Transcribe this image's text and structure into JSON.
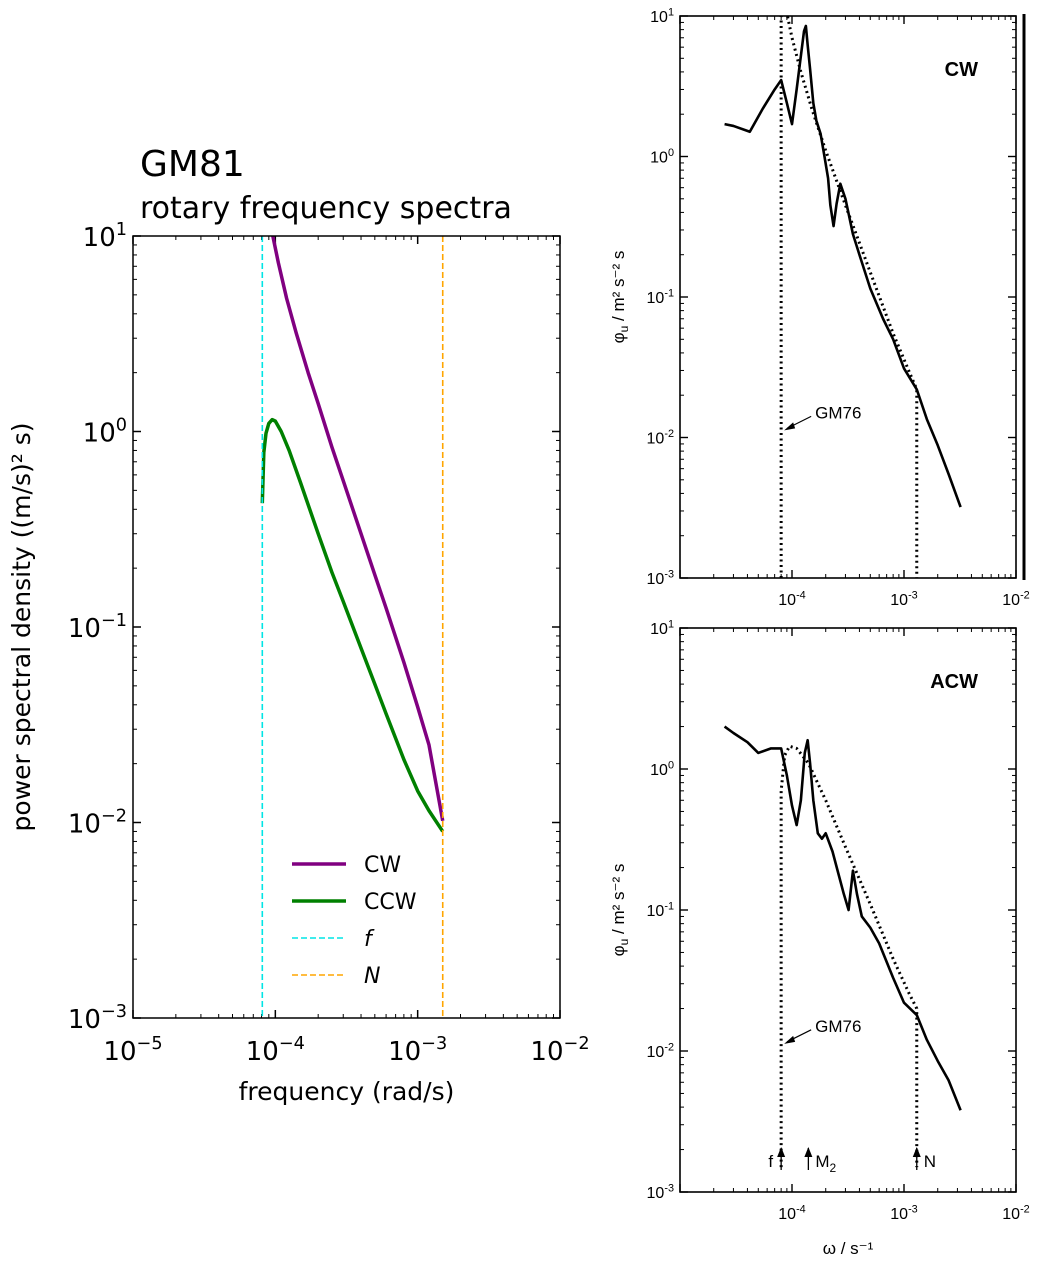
{
  "left_title": {
    "line1": "GM81",
    "line2": "rotary frequency spectra"
  },
  "chart_data": [
    {
      "id": "gm81",
      "type": "line",
      "xscale": "log",
      "yscale": "log",
      "xlim": [
        1e-05,
        0.01
      ],
      "ylim": [
        0.001,
        10
      ],
      "xlabel": "frequency (rad/s)",
      "ylabel": "power spectral density ((m/s)² s)",
      "xticks": [
        {
          "v": 1e-05,
          "base": "10",
          "exp": "−5"
        },
        {
          "v": 0.0001,
          "base": "10",
          "exp": "−4"
        },
        {
          "v": 0.001,
          "base": "10",
          "exp": "−3"
        },
        {
          "v": 0.01,
          "base": "10",
          "exp": "−2"
        }
      ],
      "yticks": [
        {
          "v": 0.001,
          "base": "10",
          "exp": "−3"
        },
        {
          "v": 0.01,
          "base": "10",
          "exp": "−2"
        },
        {
          "v": 0.1,
          "base": "10",
          "exp": "−1"
        },
        {
          "v": 1,
          "base": "10",
          "exp": "0"
        },
        {
          "v": 10,
          "base": "10",
          "exp": "1"
        }
      ],
      "series": [
        {
          "name": "CW",
          "color": "#800080",
          "style": "solid",
          "x": [
            9.6e-05,
            0.000105,
            0.00012,
            0.00014,
            0.00017,
            0.0002,
            0.00025,
            0.0003,
            0.0004,
            0.0005,
            0.0006,
            0.0008,
            0.001,
            0.0012,
            0.0015
          ],
          "y": [
            10.0,
            7.3,
            4.8,
            3.2,
            2.0,
            1.39,
            0.83,
            0.56,
            0.3,
            0.185,
            0.125,
            0.066,
            0.039,
            0.025,
            0.0102
          ]
        },
        {
          "name": "CCW",
          "color": "#008000",
          "style": "solid",
          "x": [
            8.1e-05,
            8.3e-05,
            8.6e-05,
            9e-05,
            9.5e-05,
            0.0001,
            0.00011,
            0.000125,
            0.00015,
            0.0002,
            0.00025,
            0.0003,
            0.0004,
            0.0005,
            0.0006,
            0.0008,
            0.001,
            0.0012,
            0.0015
          ],
          "y": [
            0.43,
            0.78,
            0.98,
            1.1,
            1.15,
            1.13,
            1.0,
            0.8,
            0.55,
            0.3,
            0.19,
            0.135,
            0.078,
            0.051,
            0.036,
            0.021,
            0.0145,
            0.0115,
            0.009
          ]
        },
        {
          "name": "f",
          "color": "#00e5e5",
          "style": "dashed",
          "vline": 8.1e-05
        },
        {
          "name": "N",
          "color": "#ffa500",
          "style": "dashed",
          "vline": 0.0015
        }
      ],
      "legend": "lower-center"
    },
    {
      "id": "cw",
      "type": "line",
      "xscale": "log",
      "yscale": "log",
      "xlim": [
        1e-05,
        0.01
      ],
      "ylim": [
        0.001,
        10
      ],
      "panel_label": "CW",
      "ylabel_main": "φ",
      "ylabel_sub": "u",
      "ylabel_rest": " / m² s⁻² s",
      "xticks": [
        {
          "v": 0.0001,
          "base": "10",
          "exp": "-4"
        },
        {
          "v": 0.001,
          "base": "10",
          "exp": "-3"
        },
        {
          "v": 0.01,
          "base": "10",
          "exp": "-2"
        }
      ],
      "yticks": [
        {
          "v": 0.001,
          "base": "10",
          "exp": "-3"
        },
        {
          "v": 0.01,
          "base": "10",
          "exp": "-2"
        },
        {
          "v": 0.1,
          "base": "10",
          "exp": "-1"
        },
        {
          "v": 1,
          "base": "10",
          "exp": "0"
        },
        {
          "v": 10,
          "base": "10",
          "exp": "1"
        }
      ],
      "annotation": {
        "text": "GM76",
        "x": 8e-05,
        "y": 0.012
      },
      "series": [
        {
          "name": "observed",
          "style": "solid",
          "x": [
            2.5e-05,
            3e-05,
            4.2e-05,
            5.5e-05,
            7e-05,
            8e-05,
            9e-05,
            0.0001,
            0.00011,
            0.00012,
            0.000128,
            0.000133,
            0.000138,
            0.000145,
            0.000155,
            0.000165,
            0.00018,
            0.000195,
            0.00021,
            0.00022,
            0.000235,
            0.00025,
            0.00027,
            0.0003,
            0.00035,
            0.0004,
            0.0005,
            0.00065,
            0.0008,
            0.001,
            0.0013,
            0.0016,
            0.002,
            0.0025,
            0.0032
          ],
          "y": [
            1.7,
            1.65,
            1.5,
            2.2,
            3.0,
            3.5,
            2.4,
            1.7,
            3.0,
            5.2,
            7.8,
            8.5,
            6.2,
            4.2,
            2.4,
            1.8,
            1.45,
            1.0,
            0.7,
            0.45,
            0.32,
            0.46,
            0.64,
            0.5,
            0.28,
            0.2,
            0.115,
            0.07,
            0.05,
            0.031,
            0.022,
            0.0135,
            0.0088,
            0.0055,
            0.0032
          ]
        },
        {
          "name": "GM76",
          "style": "dotted",
          "x": [
            8e-05,
            8e-05,
            9e-05,
            0.0001,
            0.00012,
            0.00015,
            0.0002,
            0.0003,
            0.0005,
            0.0008,
            0.0011,
            0.0013,
            0.0013
          ],
          "y": [
            0.001,
            10.0,
            10.5,
            7.0,
            4.0,
            2.2,
            1.1,
            0.45,
            0.15,
            0.055,
            0.03,
            0.022,
            0.001
          ]
        }
      ]
    },
    {
      "id": "acw",
      "type": "line",
      "xscale": "log",
      "yscale": "log",
      "xlim": [
        1e-05,
        0.01
      ],
      "ylim": [
        0.001,
        10
      ],
      "panel_label": "ACW",
      "xlabel": "ω / s⁻¹",
      "ylabel_main": "φ",
      "ylabel_sub": "u",
      "ylabel_rest": " / m² s⁻² s",
      "xticks": [
        {
          "v": 0.0001,
          "base": "10",
          "exp": "-4"
        },
        {
          "v": 0.001,
          "base": "10",
          "exp": "-3"
        },
        {
          "v": 0.01,
          "base": "10",
          "exp": "-2"
        }
      ],
      "yticks": [
        {
          "v": 0.001,
          "base": "10",
          "exp": "-3"
        },
        {
          "v": 0.01,
          "base": "10",
          "exp": "-2"
        },
        {
          "v": 0.1,
          "base": "10",
          "exp": "-1"
        },
        {
          "v": 1,
          "base": "10",
          "exp": "0"
        },
        {
          "v": 10,
          "base": "10",
          "exp": "1"
        }
      ],
      "annotation": {
        "text": "GM76",
        "x": 8e-05,
        "y": 0.012
      },
      "markers": [
        {
          "label": "f",
          "sub": "",
          "x": 8e-05
        },
        {
          "label": "M",
          "sub": "2",
          "x": 0.00014
        },
        {
          "label": "N",
          "sub": "",
          "x": 0.0013
        }
      ],
      "series": [
        {
          "name": "observed",
          "style": "solid",
          "x": [
            2.5e-05,
            3e-05,
            4e-05,
            5e-05,
            6.5e-05,
            8e-05,
            9e-05,
            0.0001,
            0.00011,
            0.00012,
            0.00013,
            0.000138,
            0.000145,
            0.000155,
            0.00017,
            0.000185,
            0.0002,
            0.00023,
            0.00026,
            0.00029,
            0.00032,
            0.00035,
            0.00038,
            0.00042,
            0.0005,
            0.0006,
            0.0008,
            0.001,
            0.0013,
            0.0016,
            0.002,
            0.0025,
            0.0032
          ],
          "y": [
            2.0,
            1.8,
            1.55,
            1.3,
            1.4,
            1.4,
            0.9,
            0.55,
            0.4,
            0.6,
            1.3,
            1.6,
            1.1,
            0.6,
            0.35,
            0.32,
            0.35,
            0.26,
            0.18,
            0.13,
            0.1,
            0.19,
            0.13,
            0.09,
            0.075,
            0.058,
            0.033,
            0.022,
            0.018,
            0.012,
            0.0085,
            0.0062,
            0.0038
          ]
        },
        {
          "name": "GM76",
          "style": "dotted",
          "x": [
            8e-05,
            8e-05,
            8.6e-05,
            9.5e-05,
            0.00011,
            0.00014,
            0.0002,
            0.0003,
            0.0005,
            0.0008,
            0.0011,
            0.0013,
            0.0013
          ],
          "y": [
            0.0015,
            0.7,
            1.25,
            1.45,
            1.4,
            1.1,
            0.6,
            0.28,
            0.11,
            0.045,
            0.026,
            0.02,
            0.0015
          ]
        }
      ]
    }
  ]
}
